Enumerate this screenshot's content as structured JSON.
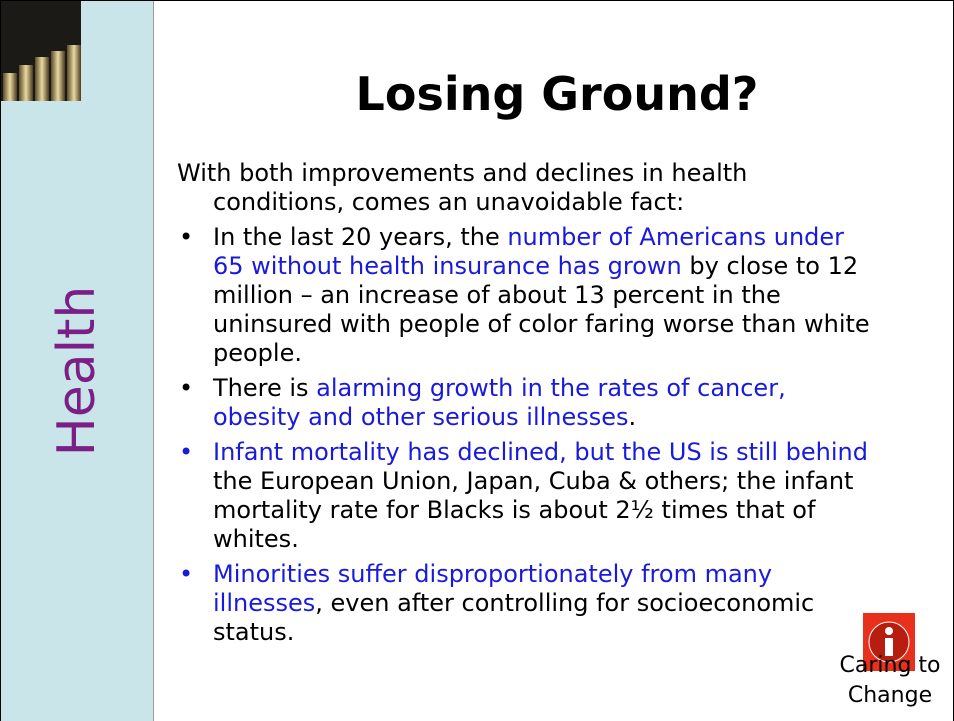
{
  "header": {
    "title": "Losing Ground?"
  },
  "sidebar": {
    "label": "Health",
    "color": "#7b1f86",
    "background": "#c9e5e9"
  },
  "body": {
    "intro": "With both improvements and declines in health conditions, comes an unavoidable fact:",
    "bullets": [
      {
        "bullet_color": "#000000",
        "segments": [
          {
            "text": "In the last 20 years, the ",
            "color": "#000000"
          },
          {
            "text": "number of Americans under 65 without health insurance has grown",
            "color": "#1a1adc"
          },
          {
            "text": " by close to 12 million – an increase of about 13 percent in the uninsured with people of color faring worse than white people.",
            "color": "#000000"
          }
        ]
      },
      {
        "bullet_color": "#000000",
        "segments": [
          {
            "text": "There is ",
            "color": "#000000"
          },
          {
            "text": "alarming growth in the rates of cancer, obesity and other serious illnesses",
            "color": "#1a1adc"
          },
          {
            "text": ".",
            "color": "#000000"
          }
        ]
      },
      {
        "bullet_color": "#1a1adc",
        "segments": [
          {
            "text": "Infant mortality has declined, but the US is still behind",
            "color": "#1a1adc"
          },
          {
            "text": " the European Union, Japan, Cuba & others;  the infant mortality rate for Blacks is about 2½ times that of whites.",
            "color": "#000000"
          }
        ]
      },
      {
        "bullet_color": "#1a1adc",
        "segments": [
          {
            "text": "Minorities suffer disproportionately from many illnesses",
            "color": "#1a1adc"
          },
          {
            "text": ", even after controlling for socioeconomic status.",
            "color": "#000000"
          }
        ]
      }
    ]
  },
  "footer": {
    "label": "Caring to Change"
  }
}
